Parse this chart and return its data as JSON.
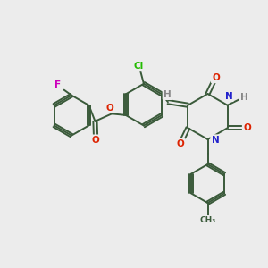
{
  "bg_color": "#ececec",
  "bond_color": "#3a5a3a",
  "bond_width": 1.4,
  "atom_colors": {
    "O": "#dd2200",
    "N": "#2222cc",
    "Cl": "#22bb00",
    "F": "#cc00bb",
    "H": "#888888",
    "C": "#3a5a3a"
  },
  "figsize": [
    3.0,
    3.0
  ],
  "dpi": 100
}
